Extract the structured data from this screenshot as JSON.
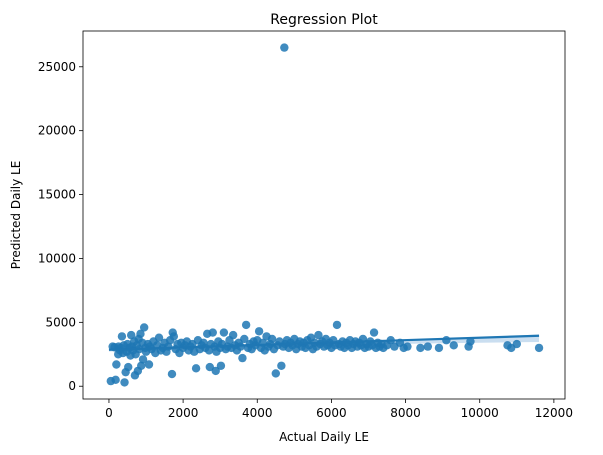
{
  "chart_data": {
    "type": "scatter",
    "title": "Regression Plot",
    "xlabel": "Actual Daily LE",
    "ylabel": "Predicted Daily LE",
    "xlim": [
      -700,
      12300
    ],
    "ylim": [
      -1000,
      27800
    ],
    "xticks": [
      0,
      2000,
      4000,
      6000,
      8000,
      10000,
      12000
    ],
    "yticks": [
      0,
      5000,
      10000,
      15000,
      20000,
      25000
    ],
    "xtick_labels": [
      "0",
      "2000",
      "4000",
      "6000",
      "8000",
      "10000",
      "12000"
    ],
    "ytick_labels": [
      "0",
      "5000",
      "10000",
      "15000",
      "20000",
      "25000"
    ],
    "grid": false,
    "legend": "none",
    "colors": {
      "points": "#1f77b4",
      "fit_line": "#1f77b4",
      "ci_band": "#a6c8e6"
    },
    "regression_line": {
      "x": [
        0,
        11600
      ],
      "y": [
        2850,
        3950
      ]
    },
    "confidence_band": {
      "x": [
        0,
        1000,
        2000,
        3000,
        4000,
        5000,
        6000,
        7000,
        8000,
        9000,
        10000,
        11000,
        11600
      ],
      "lower": [
        2720,
        2790,
        2870,
        2960,
        3050,
        3120,
        3190,
        3260,
        3310,
        3360,
        3400,
        3440,
        3460
      ],
      "upper": [
        2980,
        3040,
        3110,
        3180,
        3250,
        3340,
        3430,
        3520,
        3620,
        3730,
        3840,
        3960,
        4060
      ]
    },
    "points": [
      [
        50,
        400
      ],
      [
        100,
        3100
      ],
      [
        150,
        3050
      ],
      [
        180,
        500
      ],
      [
        200,
        1700
      ],
      [
        250,
        2500
      ],
      [
        260,
        3100
      ],
      [
        300,
        2800
      ],
      [
        320,
        3000
      ],
      [
        350,
        3900
      ],
      [
        380,
        2600
      ],
      [
        400,
        3200
      ],
      [
        420,
        300
      ],
      [
        450,
        1100
      ],
      [
        480,
        2700
      ],
      [
        500,
        3300
      ],
      [
        520,
        1500
      ],
      [
        550,
        3000
      ],
      [
        580,
        2400
      ],
      [
        600,
        4000
      ],
      [
        620,
        3100
      ],
      [
        650,
        2800
      ],
      [
        680,
        3500
      ],
      [
        700,
        850
      ],
      [
        720,
        2500
      ],
      [
        750,
        3200
      ],
      [
        780,
        1200
      ],
      [
        800,
        3700
      ],
      [
        820,
        2900
      ],
      [
        850,
        4100
      ],
      [
        870,
        1600
      ],
      [
        900,
        3400
      ],
      [
        920,
        2100
      ],
      [
        950,
        4600
      ],
      [
        980,
        3000
      ],
      [
        1000,
        2700
      ],
      [
        1050,
        3300
      ],
      [
        1080,
        1700
      ],
      [
        1100,
        3100
      ],
      [
        1150,
        2900
      ],
      [
        1200,
        3500
      ],
      [
        1250,
        2600
      ],
      [
        1300,
        3200
      ],
      [
        1350,
        3800
      ],
      [
        1400,
        2800
      ],
      [
        1450,
        3000
      ],
      [
        1500,
        3400
      ],
      [
        1550,
        2700
      ],
      [
        1600,
        3100
      ],
      [
        1650,
        3600
      ],
      [
        1700,
        950
      ],
      [
        1720,
        4200
      ],
      [
        1750,
        3900
      ],
      [
        1800,
        2900
      ],
      [
        1850,
        3300
      ],
      [
        1900,
        2600
      ],
      [
        1950,
        3400
      ],
      [
        2000,
        3000
      ],
      [
        2050,
        3200
      ],
      [
        2100,
        3500
      ],
      [
        2150,
        2800
      ],
      [
        2200,
        3100
      ],
      [
        2250,
        3300
      ],
      [
        2300,
        2700
      ],
      [
        2350,
        1400
      ],
      [
        2400,
        3600
      ],
      [
        2450,
        2900
      ],
      [
        2500,
        3200
      ],
      [
        2550,
        3400
      ],
      [
        2600,
        3000
      ],
      [
        2650,
        4100
      ],
      [
        2700,
        2800
      ],
      [
        2720,
        1500
      ],
      [
        2750,
        3300
      ],
      [
        2800,
        4200
      ],
      [
        2850,
        3100
      ],
      [
        2880,
        1200
      ],
      [
        2900,
        2700
      ],
      [
        2950,
        3500
      ],
      [
        3000,
        3000
      ],
      [
        3020,
        1600
      ],
      [
        3050,
        3300
      ],
      [
        3100,
        4200
      ],
      [
        3150,
        2900
      ],
      [
        3200,
        3100
      ],
      [
        3250,
        3600
      ],
      [
        3300,
        3000
      ],
      [
        3350,
        4000
      ],
      [
        3400,
        3200
      ],
      [
        3450,
        2800
      ],
      [
        3500,
        3400
      ],
      [
        3550,
        3100
      ],
      [
        3600,
        2200
      ],
      [
        3650,
        3700
      ],
      [
        3700,
        4800
      ],
      [
        3750,
        3000
      ],
      [
        3800,
        3300
      ],
      [
        3850,
        2900
      ],
      [
        3900,
        3500
      ],
      [
        3950,
        3200
      ],
      [
        4000,
        3600
      ],
      [
        4050,
        4300
      ],
      [
        4100,
        3000
      ],
      [
        4150,
        3400
      ],
      [
        4200,
        2800
      ],
      [
        4250,
        3900
      ],
      [
        4300,
        3100
      ],
      [
        4350,
        3300
      ],
      [
        4400,
        3700
      ],
      [
        4450,
        2900
      ],
      [
        4500,
        1000
      ],
      [
        4550,
        3200
      ],
      [
        4600,
        3500
      ],
      [
        4650,
        1600
      ],
      [
        4700,
        3100
      ],
      [
        4730,
        26500
      ],
      [
        4750,
        3300
      ],
      [
        4800,
        3600
      ],
      [
        4850,
        3000
      ],
      [
        4900,
        3400
      ],
      [
        4950,
        3200
      ],
      [
        5000,
        3700
      ],
      [
        5050,
        2900
      ],
      [
        5100,
        3300
      ],
      [
        5150,
        3500
      ],
      [
        5200,
        3100
      ],
      [
        5250,
        3400
      ],
      [
        5300,
        3000
      ],
      [
        5350,
        3600
      ],
      [
        5400,
        3200
      ],
      [
        5450,
        3800
      ],
      [
        5500,
        2900
      ],
      [
        5550,
        3400
      ],
      [
        5600,
        3100
      ],
      [
        5650,
        4000
      ],
      [
        5700,
        3300
      ],
      [
        5750,
        3500
      ],
      [
        5800,
        3100
      ],
      [
        5850,
        3700
      ],
      [
        5900,
        3200
      ],
      [
        5950,
        3400
      ],
      [
        6000,
        3000
      ],
      [
        6050,
        3600
      ],
      [
        6100,
        3200
      ],
      [
        6150,
        4800
      ],
      [
        6200,
        3300
      ],
      [
        6250,
        3100
      ],
      [
        6300,
        3500
      ],
      [
        6350,
        3000
      ],
      [
        6400,
        3400
      ],
      [
        6450,
        3200
      ],
      [
        6500,
        3600
      ],
      [
        6550,
        3000
      ],
      [
        6600,
        3300
      ],
      [
        6650,
        3500
      ],
      [
        6700,
        3100
      ],
      [
        6750,
        3400
      ],
      [
        6800,
        3200
      ],
      [
        6850,
        3700
      ],
      [
        6900,
        3000
      ],
      [
        6950,
        3300
      ],
      [
        7000,
        3100
      ],
      [
        7050,
        3500
      ],
      [
        7100,
        3200
      ],
      [
        7150,
        4200
      ],
      [
        7200,
        3000
      ],
      [
        7250,
        3400
      ],
      [
        7300,
        3100
      ],
      [
        7350,
        3300
      ],
      [
        7400,
        3000
      ],
      [
        7500,
        3200
      ],
      [
        7600,
        3600
      ],
      [
        7700,
        3100
      ],
      [
        7850,
        3400
      ],
      [
        7950,
        3000
      ],
      [
        8050,
        3100
      ],
      [
        8400,
        3000
      ],
      [
        8600,
        3100
      ],
      [
        8900,
        3000
      ],
      [
        9100,
        3600
      ],
      [
        9300,
        3200
      ],
      [
        9700,
        3100
      ],
      [
        9750,
        3500
      ],
      [
        10750,
        3200
      ],
      [
        10850,
        3000
      ],
      [
        11000,
        3300
      ],
      [
        11600,
        3000
      ]
    ]
  }
}
